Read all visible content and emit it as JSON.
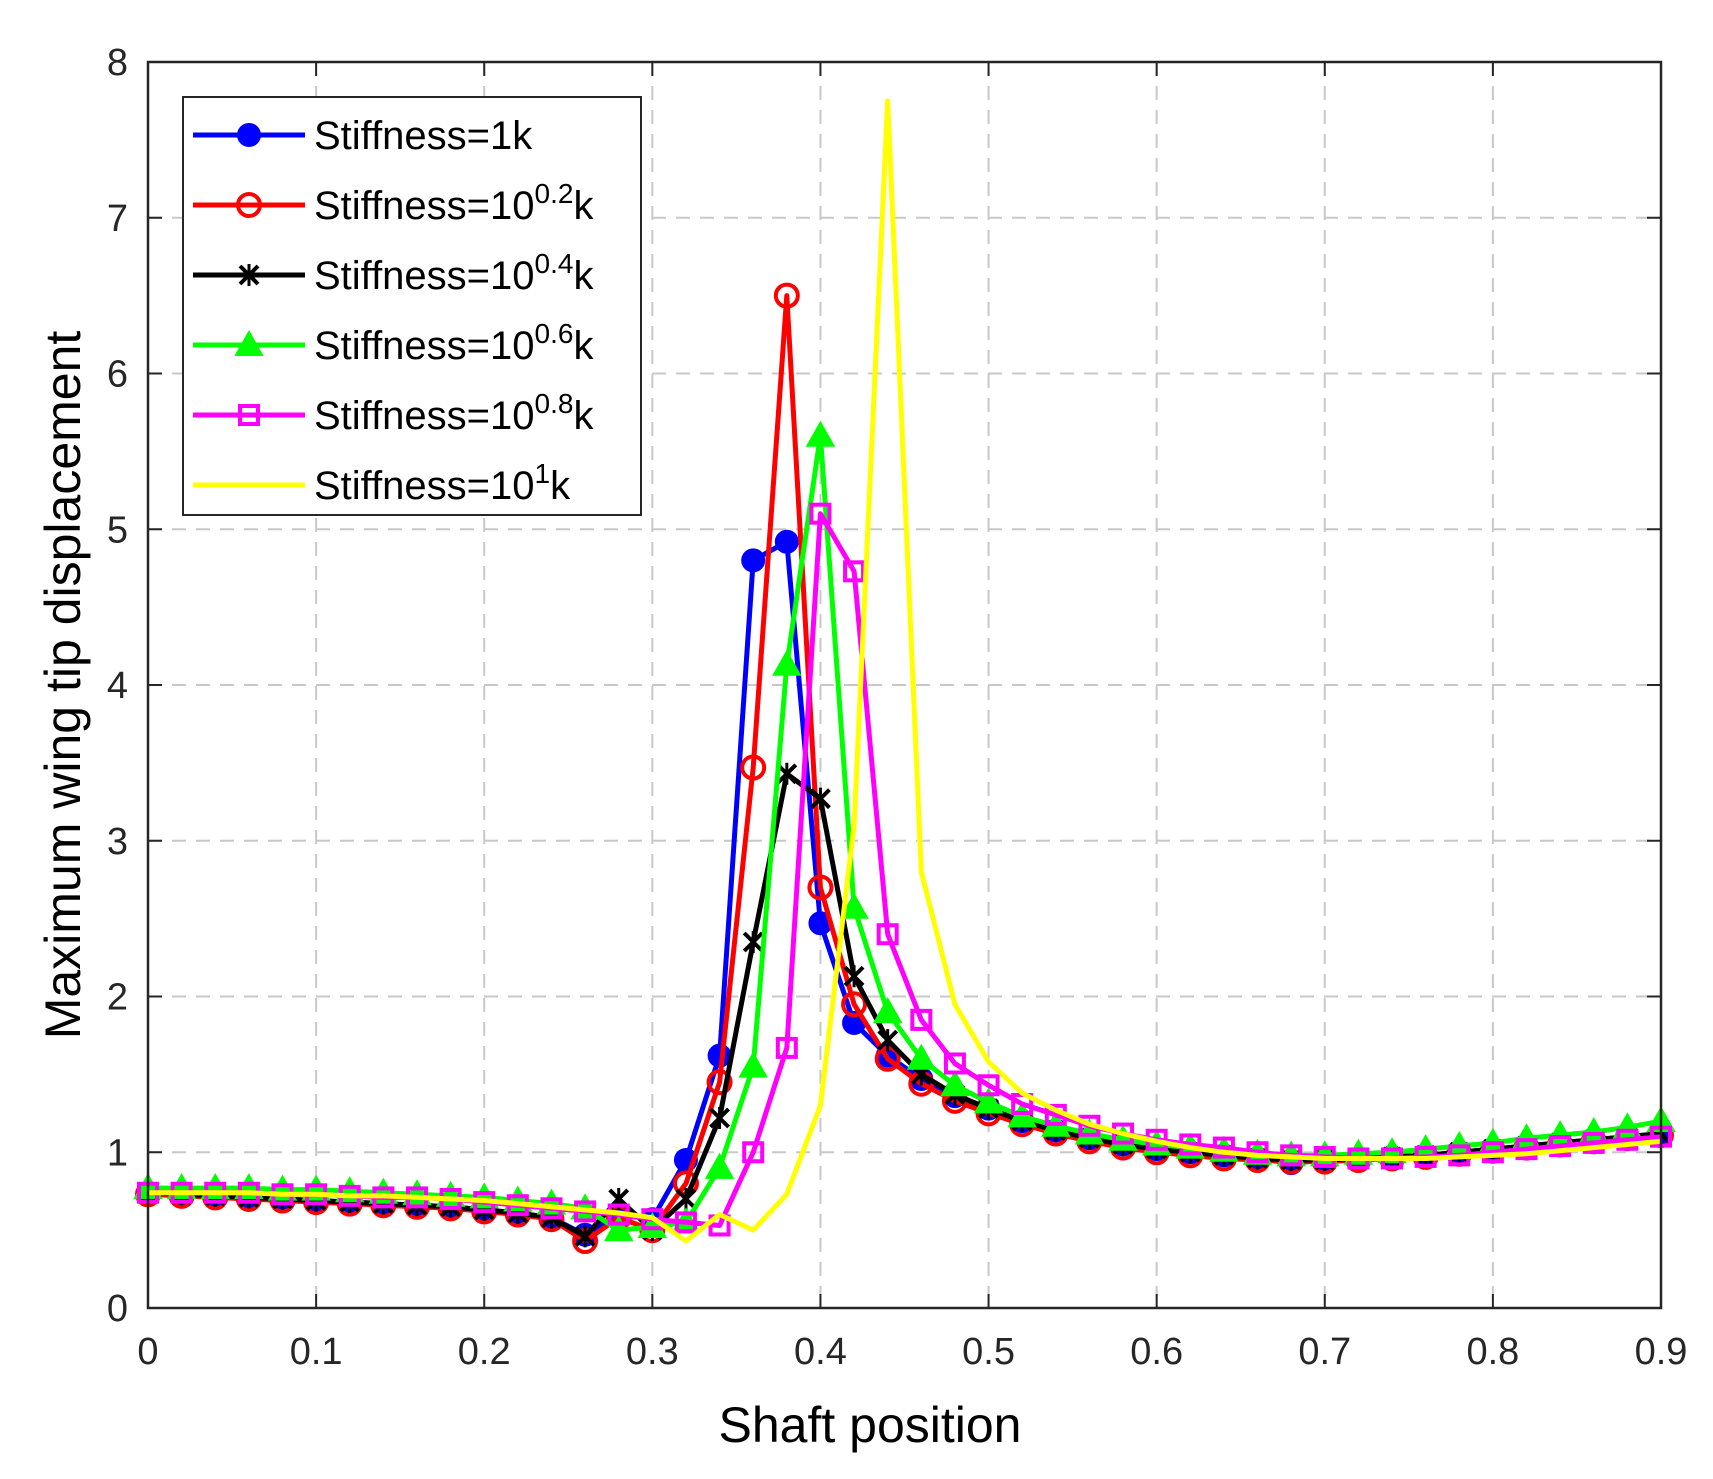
{
  "chart_data": {
    "type": "line",
    "title": "",
    "xlabel": "Shaft position",
    "ylabel": "Maximum wing tip displacement",
    "xlim": [
      0,
      0.9
    ],
    "ylim": [
      0,
      8
    ],
    "xticks": [
      0,
      0.1,
      0.2,
      0.3,
      0.4,
      0.5,
      0.6,
      0.7,
      0.8,
      0.9
    ],
    "xtick_labels": [
      "0",
      "0.1",
      "0.2",
      "0.3",
      "0.4",
      "0.5",
      "0.6",
      "0.7",
      "0.8",
      "0.9"
    ],
    "yticks": [
      0,
      1,
      2,
      3,
      4,
      5,
      6,
      7,
      8
    ],
    "ytick_labels": [
      "0",
      "1",
      "2",
      "3",
      "4",
      "5",
      "6",
      "7",
      "8"
    ],
    "grid": true,
    "legend_position": "top-left",
    "series": [
      {
        "name": "Stiffness=1k",
        "label_prefix": "Stiffness=1k",
        "label_sup": "",
        "label_suffix": "",
        "color": "#0000ff",
        "marker": "circle-filled",
        "x": [
          0,
          0.02,
          0.04,
          0.06,
          0.08,
          0.1,
          0.12,
          0.14,
          0.16,
          0.18,
          0.2,
          0.22,
          0.24,
          0.26,
          0.28,
          0.3,
          0.32,
          0.34,
          0.36,
          0.38,
          0.4,
          0.42,
          0.44,
          0.46,
          0.48,
          0.5,
          0.52,
          0.54,
          0.56,
          0.58,
          0.6,
          0.62,
          0.64,
          0.66,
          0.68,
          0.7,
          0.72,
          0.74,
          0.76,
          0.78,
          0.8,
          0.82,
          0.84,
          0.86,
          0.88,
          0.9
        ],
        "y": [
          0.73,
          0.73,
          0.72,
          0.71,
          0.7,
          0.69,
          0.68,
          0.67,
          0.66,
          0.65,
          0.63,
          0.61,
          0.58,
          0.47,
          0.6,
          0.57,
          0.95,
          1.62,
          4.8,
          4.92,
          2.47,
          1.83,
          1.62,
          1.47,
          1.36,
          1.28,
          1.2,
          1.14,
          1.09,
          1.05,
          1.02,
          1.0,
          0.98,
          0.96,
          0.93,
          0.95,
          0.96,
          0.97,
          0.98,
          1.0,
          1.02,
          1.04,
          1.06,
          1.08,
          1.1,
          1.12
        ]
      },
      {
        "name": "Stiffness=10^0.2k",
        "label_prefix": "Stiffness=10",
        "label_sup": "0.2",
        "label_suffix": "k",
        "color": "#ff0000",
        "marker": "circle-open",
        "x": [
          0,
          0.02,
          0.04,
          0.06,
          0.08,
          0.1,
          0.12,
          0.14,
          0.16,
          0.18,
          0.2,
          0.22,
          0.24,
          0.26,
          0.28,
          0.3,
          0.32,
          0.34,
          0.36,
          0.38,
          0.4,
          0.42,
          0.44,
          0.46,
          0.48,
          0.5,
          0.52,
          0.54,
          0.56,
          0.58,
          0.6,
          0.62,
          0.64,
          0.66,
          0.68,
          0.7,
          0.72,
          0.74,
          0.76,
          0.78,
          0.8,
          0.82,
          0.84,
          0.86,
          0.88,
          0.9
        ],
        "y": [
          0.73,
          0.72,
          0.71,
          0.7,
          0.69,
          0.68,
          0.67,
          0.66,
          0.65,
          0.64,
          0.62,
          0.6,
          0.57,
          0.43,
          0.58,
          0.5,
          0.8,
          1.45,
          3.47,
          6.5,
          2.7,
          1.95,
          1.6,
          1.44,
          1.33,
          1.25,
          1.18,
          1.12,
          1.07,
          1.03,
          1.0,
          0.98,
          0.96,
          0.95,
          0.94,
          0.94,
          0.95,
          0.96,
          0.97,
          0.99,
          1.01,
          1.03,
          1.05,
          1.07,
          1.09,
          1.11
        ]
      },
      {
        "name": "Stiffness=10^0.4k",
        "label_prefix": "Stiffness=10",
        "label_sup": "0.4",
        "label_suffix": "k",
        "color": "#000000",
        "marker": "asterisk",
        "x": [
          0,
          0.02,
          0.04,
          0.06,
          0.08,
          0.1,
          0.12,
          0.14,
          0.16,
          0.18,
          0.2,
          0.22,
          0.24,
          0.26,
          0.28,
          0.3,
          0.32,
          0.34,
          0.36,
          0.38,
          0.4,
          0.42,
          0.44,
          0.46,
          0.48,
          0.5,
          0.52,
          0.54,
          0.56,
          0.58,
          0.6,
          0.62,
          0.64,
          0.66,
          0.68,
          0.7,
          0.72,
          0.74,
          0.76,
          0.78,
          0.8,
          0.82,
          0.84,
          0.86,
          0.88,
          0.9
        ],
        "y": [
          0.74,
          0.73,
          0.72,
          0.71,
          0.7,
          0.69,
          0.68,
          0.67,
          0.66,
          0.65,
          0.63,
          0.61,
          0.58,
          0.46,
          0.7,
          0.5,
          0.7,
          1.22,
          2.35,
          3.43,
          3.27,
          2.13,
          1.72,
          1.5,
          1.37,
          1.28,
          1.2,
          1.14,
          1.09,
          1.05,
          1.02,
          1.0,
          0.98,
          0.96,
          0.95,
          0.95,
          0.96,
          0.97,
          0.98,
          1.0,
          1.02,
          1.04,
          1.06,
          1.08,
          1.1,
          1.12
        ]
      },
      {
        "name": "Stiffness=10^0.6k",
        "label_prefix": "Stiffness=10",
        "label_sup": "0.6",
        "label_suffix": "k",
        "color": "#00ff00",
        "marker": "triangle",
        "x": [
          0,
          0.02,
          0.04,
          0.06,
          0.08,
          0.1,
          0.12,
          0.14,
          0.16,
          0.18,
          0.2,
          0.22,
          0.24,
          0.26,
          0.28,
          0.3,
          0.32,
          0.34,
          0.36,
          0.38,
          0.4,
          0.42,
          0.44,
          0.46,
          0.48,
          0.5,
          0.52,
          0.54,
          0.56,
          0.58,
          0.6,
          0.62,
          0.64,
          0.66,
          0.68,
          0.7,
          0.72,
          0.74,
          0.76,
          0.78,
          0.8,
          0.82,
          0.84,
          0.86,
          0.88,
          0.9
        ],
        "y": [
          0.77,
          0.77,
          0.77,
          0.77,
          0.76,
          0.76,
          0.75,
          0.74,
          0.73,
          0.72,
          0.71,
          0.69,
          0.67,
          0.64,
          0.5,
          0.52,
          0.55,
          0.9,
          1.55,
          4.13,
          5.6,
          2.57,
          1.9,
          1.6,
          1.43,
          1.32,
          1.23,
          1.17,
          1.12,
          1.08,
          1.05,
          1.03,
          1.01,
          0.99,
          0.98,
          0.98,
          0.99,
          1.0,
          1.02,
          1.04,
          1.06,
          1.09,
          1.11,
          1.13,
          1.16,
          1.2
        ]
      },
      {
        "name": "Stiffness=10^0.8k",
        "label_prefix": "Stiffness=10",
        "label_sup": "0.8",
        "label_suffix": "k",
        "color": "#ff00ff",
        "marker": "square-open",
        "x": [
          0,
          0.02,
          0.04,
          0.06,
          0.08,
          0.1,
          0.12,
          0.14,
          0.16,
          0.18,
          0.2,
          0.22,
          0.24,
          0.26,
          0.28,
          0.3,
          0.32,
          0.34,
          0.36,
          0.38,
          0.4,
          0.42,
          0.44,
          0.46,
          0.48,
          0.5,
          0.52,
          0.54,
          0.56,
          0.58,
          0.6,
          0.62,
          0.64,
          0.66,
          0.68,
          0.7,
          0.72,
          0.74,
          0.76,
          0.78,
          0.8,
          0.82,
          0.84,
          0.86,
          0.88,
          0.9
        ],
        "y": [
          0.74,
          0.74,
          0.74,
          0.74,
          0.73,
          0.73,
          0.72,
          0.71,
          0.71,
          0.7,
          0.68,
          0.66,
          0.64,
          0.62,
          0.6,
          0.57,
          0.55,
          0.53,
          1.0,
          1.67,
          5.1,
          4.73,
          2.4,
          1.85,
          1.57,
          1.43,
          1.31,
          1.24,
          1.17,
          1.12,
          1.08,
          1.05,
          1.03,
          1.0,
          0.98,
          0.97,
          0.96,
          0.96,
          0.97,
          0.98,
          1.0,
          1.02,
          1.04,
          1.06,
          1.08,
          1.1
        ]
      },
      {
        "name": "Stiffness=10^1k",
        "label_prefix": "Stiffness=10",
        "label_sup": "1",
        "label_suffix": "k",
        "color": "#ffff00",
        "marker": "none",
        "x": [
          0,
          0.02,
          0.04,
          0.06,
          0.08,
          0.1,
          0.12,
          0.14,
          0.16,
          0.18,
          0.2,
          0.22,
          0.24,
          0.26,
          0.28,
          0.3,
          0.32,
          0.34,
          0.36,
          0.38,
          0.4,
          0.42,
          0.44,
          0.46,
          0.48,
          0.5,
          0.52,
          0.54,
          0.56,
          0.58,
          0.6,
          0.62,
          0.64,
          0.66,
          0.68,
          0.7,
          0.72,
          0.74,
          0.76,
          0.78,
          0.8,
          0.82,
          0.84,
          0.86,
          0.88,
          0.9
        ],
        "y": [
          0.74,
          0.74,
          0.74,
          0.74,
          0.73,
          0.73,
          0.72,
          0.72,
          0.71,
          0.7,
          0.69,
          0.67,
          0.65,
          0.63,
          0.61,
          0.58,
          0.43,
          0.6,
          0.5,
          0.73,
          1.3,
          3.1,
          7.75,
          2.8,
          1.95,
          1.58,
          1.38,
          1.27,
          1.18,
          1.12,
          1.07,
          1.03,
          1.0,
          0.98,
          0.97,
          0.96,
          0.96,
          0.96,
          0.96,
          0.97,
          0.98,
          0.99,
          1.01,
          1.03,
          1.05,
          1.07
        ]
      }
    ]
  }
}
